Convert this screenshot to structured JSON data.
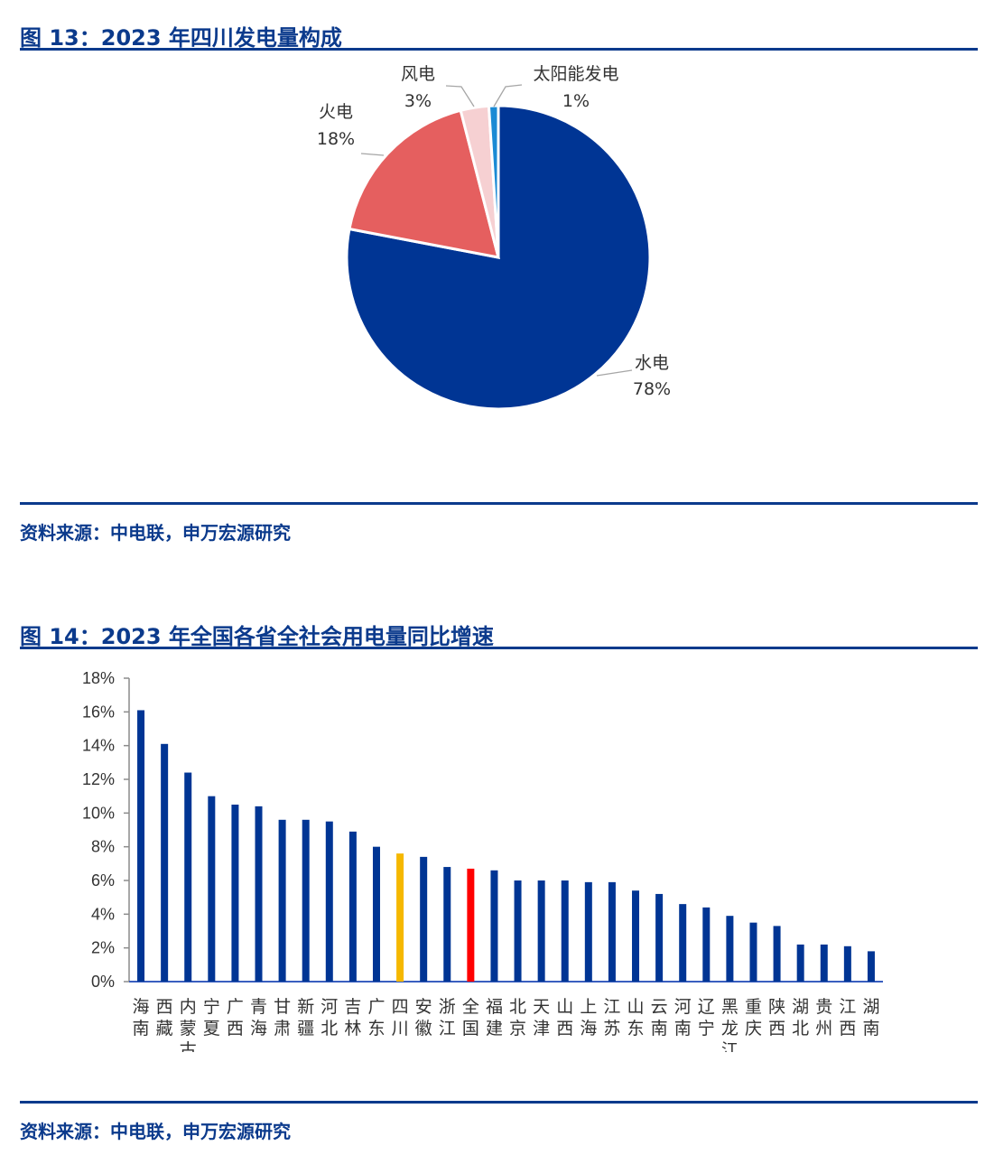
{
  "figures": [
    {
      "title": "图 13：2023 年四川发电量构成",
      "source": "资料来源：中电联，申万宏源研究"
    },
    {
      "title": "图 14：2023 年全国各省全社会用电量同比增速",
      "source": "资料来源：中电联，申万宏源研究"
    }
  ],
  "chart_data": [
    {
      "type": "pie",
      "title": "图 13：2023 年四川发电量构成",
      "slices": [
        {
          "name": "水电",
          "value": 78,
          "label": "78%",
          "color": "#003594"
        },
        {
          "name": "火电",
          "value": 18,
          "label": "18%",
          "color": "#e55f5f"
        },
        {
          "name": "风电",
          "value": 3,
          "label": "3%",
          "color": "#f6d0d2"
        },
        {
          "name": "太阳能发电",
          "value": 1,
          "label": "1%",
          "color": "#1a8ad4"
        }
      ]
    },
    {
      "type": "bar",
      "title": "图 14：2023 年全国各省全社会用电量同比增速",
      "ylim": [
        0,
        18
      ],
      "yticks": [
        "18%",
        "16%",
        "14%",
        "12%",
        "10%",
        "8%",
        "6%",
        "4%",
        "2%",
        "0%"
      ],
      "categories": [
        "海南",
        "西藏",
        "内蒙古",
        "宁夏",
        "广西",
        "青海",
        "甘肃",
        "新疆",
        "河北",
        "吉林",
        "广东",
        "四川",
        "安徽",
        "浙江",
        "全国",
        "福建",
        "北京",
        "天津",
        "山西",
        "上海",
        "江苏",
        "山东",
        "云南",
        "河南",
        "辽宁",
        "黑龙江",
        "重庆",
        "陕西",
        "湖北",
        "贵州",
        "江西",
        "湖南"
      ],
      "values": [
        16.1,
        14.1,
        12.4,
        11.0,
        10.5,
        10.4,
        9.6,
        9.6,
        9.5,
        8.9,
        8.0,
        7.6,
        7.4,
        6.8,
        6.7,
        6.6,
        6.0,
        6.0,
        6.0,
        5.9,
        5.9,
        5.4,
        5.2,
        4.6,
        4.4,
        3.9,
        3.5,
        3.3,
        2.2,
        2.2,
        2.1,
        1.8
      ],
      "colors": {
        "default": "#003594",
        "四川": "#f5b800",
        "全国": "#ff0000"
      }
    }
  ]
}
